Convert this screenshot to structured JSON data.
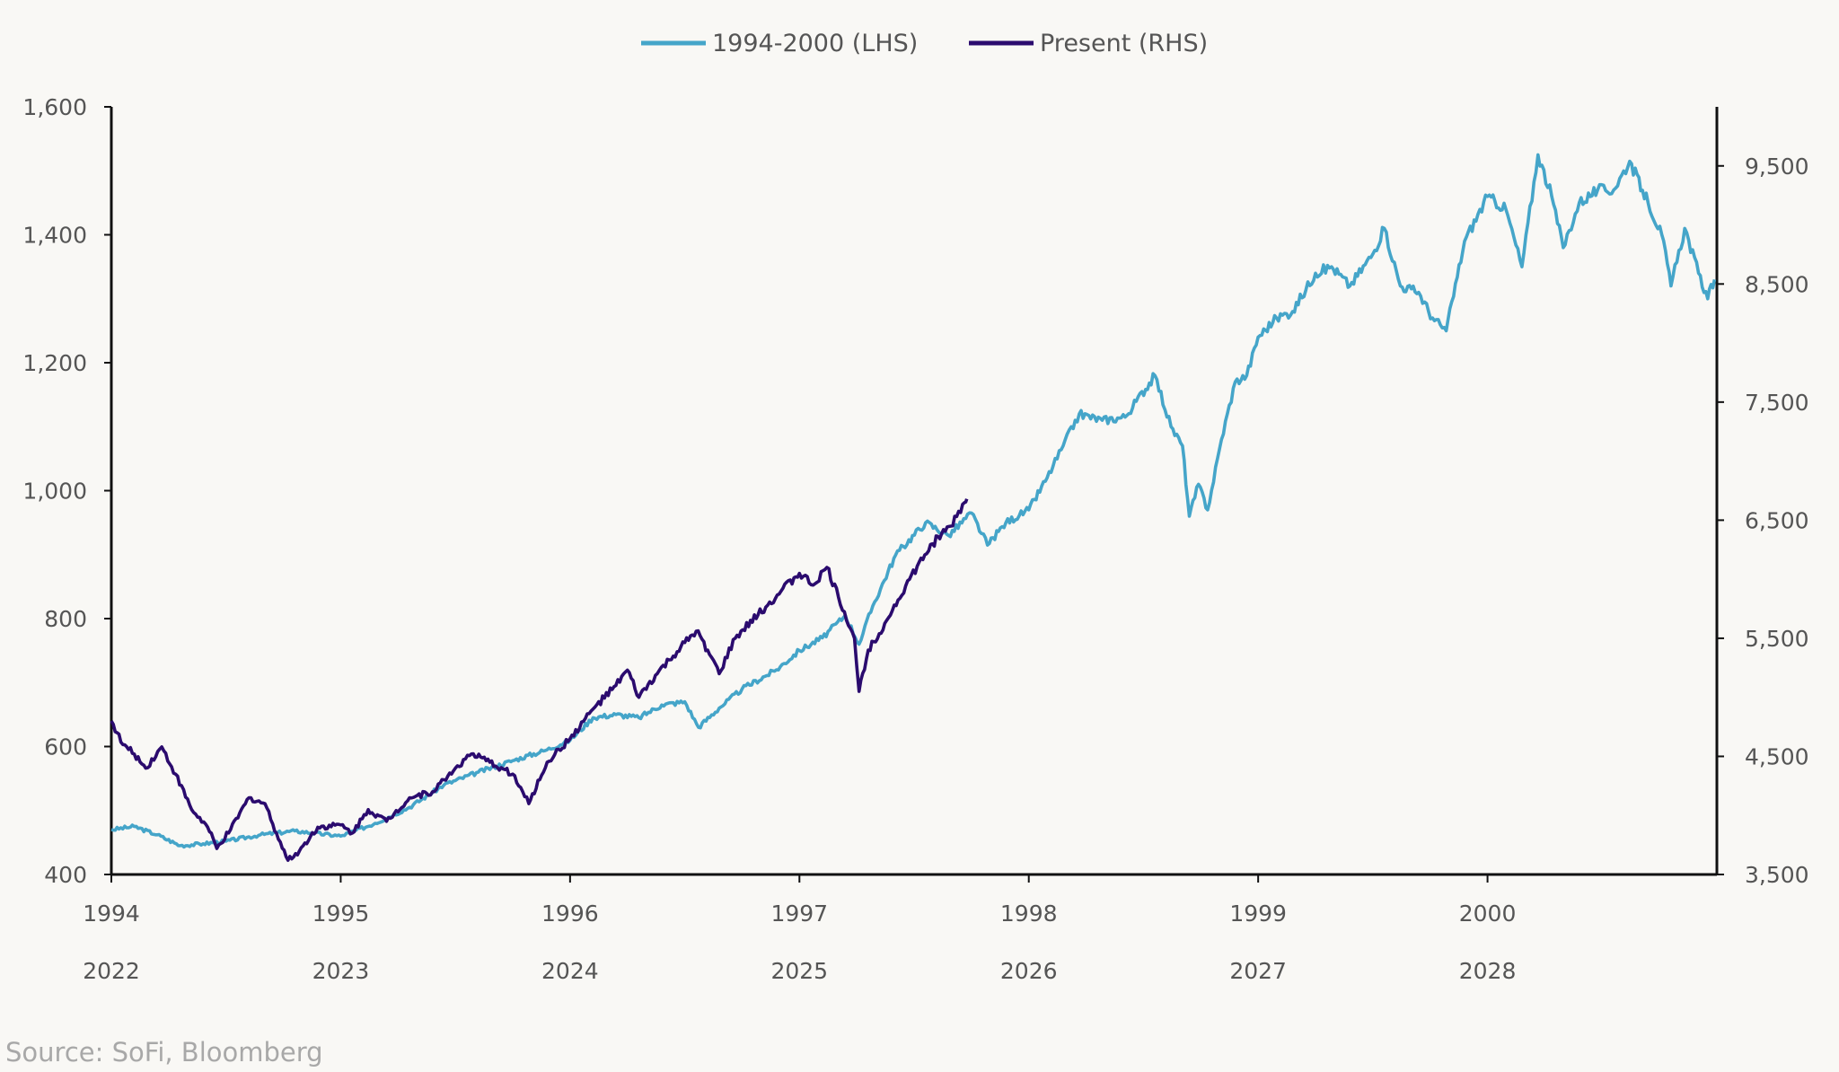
{
  "chart_data": {
    "type": "line",
    "title": "",
    "legend_position": "top-center",
    "grid": false,
    "x_axis": {
      "range": [
        1994,
        2001
      ],
      "tick_labels_top_row": [
        "1994",
        "1995",
        "1996",
        "1997",
        "1998",
        "1999",
        "2000"
      ],
      "tick_labels_bottom_row": [
        "2022",
        "2023",
        "2024",
        "2025",
        "2026",
        "2027",
        "2028"
      ]
    },
    "y_left": {
      "range": [
        400,
        1600
      ],
      "ticks": [
        400,
        600,
        800,
        1000,
        1200,
        1400,
        1600
      ],
      "tick_labels": [
        "400",
        "600",
        "800",
        "1,000",
        "1,200",
        "1,400",
        "1,600"
      ]
    },
    "y_right": {
      "range": [
        3500,
        10000
      ],
      "ticks": [
        3500,
        4500,
        5500,
        6500,
        7500,
        8500,
        9500
      ],
      "tick_labels": [
        "3,500",
        "4,500",
        "5,500",
        "6,500",
        "7,500",
        "8,500",
        "9,500"
      ]
    },
    "series": [
      {
        "name": "1994-2000 (LHS)",
        "axis": "left",
        "color": "#45a5c9",
        "points": [
          [
            1994.0,
            470
          ],
          [
            1994.1,
            475
          ],
          [
            1994.2,
            462
          ],
          [
            1994.3,
            445
          ],
          [
            1994.4,
            448
          ],
          [
            1994.5,
            452
          ],
          [
            1994.65,
            462
          ],
          [
            1994.8,
            468
          ],
          [
            1995.0,
            460
          ],
          [
            1995.15,
            480
          ],
          [
            1995.3,
            505
          ],
          [
            1995.45,
            540
          ],
          [
            1995.6,
            560
          ],
          [
            1995.75,
            578
          ],
          [
            1995.9,
            595
          ],
          [
            1996.0,
            610
          ],
          [
            1996.1,
            645
          ],
          [
            1996.2,
            650
          ],
          [
            1996.3,
            645
          ],
          [
            1996.4,
            665
          ],
          [
            1996.5,
            670
          ],
          [
            1996.56,
            630
          ],
          [
            1996.65,
            660
          ],
          [
            1996.75,
            690
          ],
          [
            1996.9,
            720
          ],
          [
            1997.0,
            750
          ],
          [
            1997.1,
            770
          ],
          [
            1997.2,
            805
          ],
          [
            1997.26,
            760
          ],
          [
            1997.32,
            820
          ],
          [
            1997.42,
            900
          ],
          [
            1997.55,
            950
          ],
          [
            1997.65,
            930
          ],
          [
            1997.75,
            965
          ],
          [
            1997.82,
            915
          ],
          [
            1997.9,
            950
          ],
          [
            1998.0,
            970
          ],
          [
            1998.08,
            1020
          ],
          [
            1998.15,
            1070
          ],
          [
            1998.22,
            1120
          ],
          [
            1998.32,
            1110
          ],
          [
            1998.42,
            1115
          ],
          [
            1998.55,
            1180
          ],
          [
            1998.62,
            1100
          ],
          [
            1998.67,
            1070
          ],
          [
            1998.7,
            960
          ],
          [
            1998.74,
            1010
          ],
          [
            1998.78,
            970
          ],
          [
            1998.84,
            1080
          ],
          [
            1998.9,
            1170
          ],
          [
            1998.95,
            1180
          ],
          [
            1999.0,
            1240
          ],
          [
            1999.08,
            1270
          ],
          [
            1999.15,
            1280
          ],
          [
            1999.25,
            1340
          ],
          [
            1999.32,
            1350
          ],
          [
            1999.4,
            1320
          ],
          [
            1999.5,
            1370
          ],
          [
            1999.55,
            1410
          ],
          [
            1999.62,
            1320
          ],
          [
            1999.7,
            1310
          ],
          [
            1999.76,
            1270
          ],
          [
            1999.82,
            1250
          ],
          [
            1999.9,
            1390
          ],
          [
            2000.0,
            1460
          ],
          [
            2000.08,
            1440
          ],
          [
            2000.15,
            1350
          ],
          [
            2000.22,
            1525
          ],
          [
            2000.28,
            1460
          ],
          [
            2000.33,
            1380
          ],
          [
            2000.4,
            1450
          ],
          [
            2000.48,
            1470
          ],
          [
            2000.55,
            1470
          ],
          [
            2000.62,
            1515
          ],
          [
            2000.7,
            1450
          ],
          [
            2000.76,
            1400
          ],
          [
            2000.8,
            1320
          ],
          [
            2000.86,
            1410
          ],
          [
            2000.92,
            1340
          ],
          [
            2000.96,
            1300
          ],
          [
            2000.99,
            1330
          ]
        ]
      },
      {
        "name": "Present (RHS)",
        "axis": "right",
        "color": "#2b0b6e",
        "points": [
          [
            1994.0,
            4800
          ],
          [
            1994.05,
            4600
          ],
          [
            1994.1,
            4520
          ],
          [
            1994.15,
            4400
          ],
          [
            1994.22,
            4580
          ],
          [
            1994.28,
            4350
          ],
          [
            1994.35,
            4050
          ],
          [
            1994.42,
            3900
          ],
          [
            1994.46,
            3720
          ],
          [
            1994.52,
            3880
          ],
          [
            1994.6,
            4150
          ],
          [
            1994.67,
            4100
          ],
          [
            1994.72,
            3850
          ],
          [
            1994.77,
            3620
          ],
          [
            1994.82,
            3700
          ],
          [
            1994.9,
            3900
          ],
          [
            1995.0,
            3920
          ],
          [
            1995.05,
            3850
          ],
          [
            1995.12,
            4050
          ],
          [
            1995.2,
            3950
          ],
          [
            1995.3,
            4150
          ],
          [
            1995.4,
            4200
          ],
          [
            1995.5,
            4400
          ],
          [
            1995.57,
            4520
          ],
          [
            1995.65,
            4450
          ],
          [
            1995.75,
            4350
          ],
          [
            1995.82,
            4100
          ],
          [
            1995.9,
            4450
          ],
          [
            1996.0,
            4650
          ],
          [
            1996.1,
            4900
          ],
          [
            1996.2,
            5100
          ],
          [
            1996.25,
            5230
          ],
          [
            1996.3,
            5000
          ],
          [
            1996.38,
            5200
          ],
          [
            1996.45,
            5350
          ],
          [
            1996.55,
            5560
          ],
          [
            1996.6,
            5400
          ],
          [
            1996.65,
            5200
          ],
          [
            1996.72,
            5500
          ],
          [
            1996.82,
            5700
          ],
          [
            1996.92,
            5900
          ],
          [
            1997.0,
            6050
          ],
          [
            1997.06,
            5950
          ],
          [
            1997.12,
            6100
          ],
          [
            1997.17,
            5850
          ],
          [
            1997.24,
            5500
          ],
          [
            1997.26,
            5050
          ],
          [
            1997.3,
            5400
          ],
          [
            1997.38,
            5650
          ],
          [
            1997.48,
            6000
          ],
          [
            1997.58,
            6300
          ],
          [
            1997.66,
            6450
          ],
          [
            1997.72,
            6650
          ],
          [
            1997.73,
            6680
          ]
        ]
      }
    ]
  },
  "source": "Source: SoFi, Bloomberg"
}
